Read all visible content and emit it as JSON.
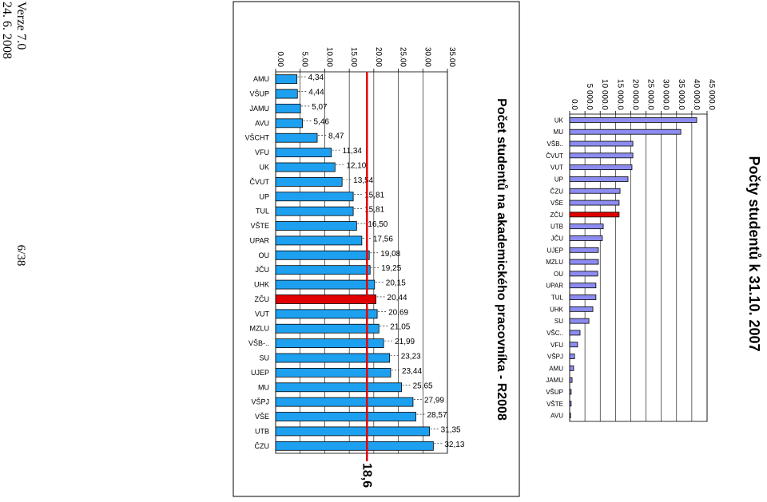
{
  "header": {
    "version": "Verze 7.0",
    "date": "24. 6. 2008",
    "page": "6/38"
  },
  "chart_data": [
    {
      "type": "bar",
      "title": "Počet studentů na akademického pracovníka - R2008",
      "categories": [
        "AMU",
        "VŠUP",
        "JAMU",
        "AVU",
        "VŠCHT",
        "VFU",
        "UK",
        "ČVUT",
        "UP",
        "TUL",
        "VŠTE",
        "UPAR",
        "OU",
        "JČU",
        "UHK",
        "ZČU",
        "VUT",
        "MZLU",
        "VŠB-..",
        "SU",
        "UJEP",
        "MU",
        "VŠPJ",
        "VŠE",
        "UTB",
        "ČZU"
      ],
      "values": [
        4.34,
        4.44,
        5.07,
        5.46,
        8.47,
        11.34,
        12.1,
        13.54,
        15.81,
        15.81,
        16.5,
        17.56,
        19.08,
        19.25,
        20.15,
        20.44,
        20.69,
        21.05,
        21.99,
        23.23,
        23.44,
        25.65,
        27.99,
        28.57,
        31.35,
        32.13
      ],
      "value_labels": [
        "4,34",
        "4,44",
        "5,07",
        "5,46",
        "8,47",
        "11,34",
        "12,10",
        "13,54",
        "15,81",
        "15,81",
        "16,50",
        "17,56",
        "19,08",
        "19,25",
        "20,15",
        "20,44",
        "20,69",
        "21,05",
        "21,99",
        "23,23",
        "23,44",
        "25,65",
        "27,99",
        "28,57",
        "31,35",
        "32,13"
      ],
      "colors": [
        "#1ea0f0",
        "#1ea0f0",
        "#1ea0f0",
        "#1ea0f0",
        "#1ea0f0",
        "#1ea0f0",
        "#1ea0f0",
        "#1ea0f0",
        "#1ea0f0",
        "#1ea0f0",
        "#1ea0f0",
        "#1ea0f0",
        "#1ea0f0",
        "#1ea0f0",
        "#1ea0f0",
        "#e00000",
        "#1ea0f0",
        "#1ea0f0",
        "#1ea0f0",
        "#1ea0f0",
        "#1ea0f0",
        "#1ea0f0",
        "#1ea0f0",
        "#1ea0f0",
        "#1ea0f0",
        "#1ea0f0"
      ],
      "xlim": [
        0,
        35
      ],
      "xticks": [
        {
          "value": 0,
          "label": "0.00"
        },
        {
          "value": 5,
          "label": "5.00"
        },
        {
          "value": 10,
          "label": "10.00"
        },
        {
          "value": 15,
          "label": "15.00"
        },
        {
          "value": 20,
          "label": "20.00"
        },
        {
          "value": 25,
          "label": "25.00"
        },
        {
          "value": 30,
          "label": "30.00"
        },
        {
          "value": 35,
          "label": "35.00"
        }
      ],
      "grid": true,
      "reference_line": {
        "value": 18.6,
        "label": "18,6",
        "color": "#e00000"
      }
    },
    {
      "type": "bar",
      "title": "Počty studentů k 31.10. 2007",
      "categories": [
        "UK",
        "MU",
        "VŠB..",
        "ČVUT",
        "VUT",
        "UP",
        "ČZU",
        "VŠE",
        "ZČU",
        "UTB",
        "JČU",
        "UJEP",
        "MZLU",
        "OU",
        "UPAR",
        "TUL",
        "UHK",
        "SU",
        "VŠC..",
        "VFU",
        "VŠPJ",
        "AMU",
        "JAMU",
        "VŠUP",
        "VŠTE",
        "AVU"
      ],
      "values": [
        41600,
        36400,
        20700,
        20700,
        20400,
        19100,
        16500,
        16200,
        16200,
        11000,
        10700,
        9400,
        9400,
        9200,
        8600,
        8600,
        7600,
        6300,
        3400,
        2600,
        1600,
        1300,
        800,
        500,
        500,
        300
      ],
      "colors": [
        "#8c8cf0",
        "#8c8cf0",
        "#8c8cf0",
        "#8c8cf0",
        "#8c8cf0",
        "#8c8cf0",
        "#8c8cf0",
        "#8c8cf0",
        "#e00000",
        "#8c8cf0",
        "#8c8cf0",
        "#8c8cf0",
        "#8c8cf0",
        "#8c8cf0",
        "#8c8cf0",
        "#8c8cf0",
        "#8c8cf0",
        "#8c8cf0",
        "#8c8cf0",
        "#8c8cf0",
        "#8c8cf0",
        "#8c8cf0",
        "#8c8cf0",
        "#8c8cf0",
        "#8c8cf0",
        "#8c8cf0"
      ],
      "xlim": [
        0,
        45000
      ],
      "xticks": [
        {
          "value": 0,
          "label": "0.0"
        },
        {
          "value": 5000,
          "label": "5 000.0"
        },
        {
          "value": 10000,
          "label": "10 000.0"
        },
        {
          "value": 15000,
          "label": "15 000.0"
        },
        {
          "value": 20000,
          "label": "20 000.0"
        },
        {
          "value": 25000,
          "label": "25 000.0"
        },
        {
          "value": 30000,
          "label": "30 000.0"
        },
        {
          "value": 35000,
          "label": "35 000.0"
        },
        {
          "value": 40000,
          "label": "40 000.0"
        },
        {
          "value": 45000,
          "label": "45 000.0"
        }
      ],
      "grid": true
    }
  ]
}
